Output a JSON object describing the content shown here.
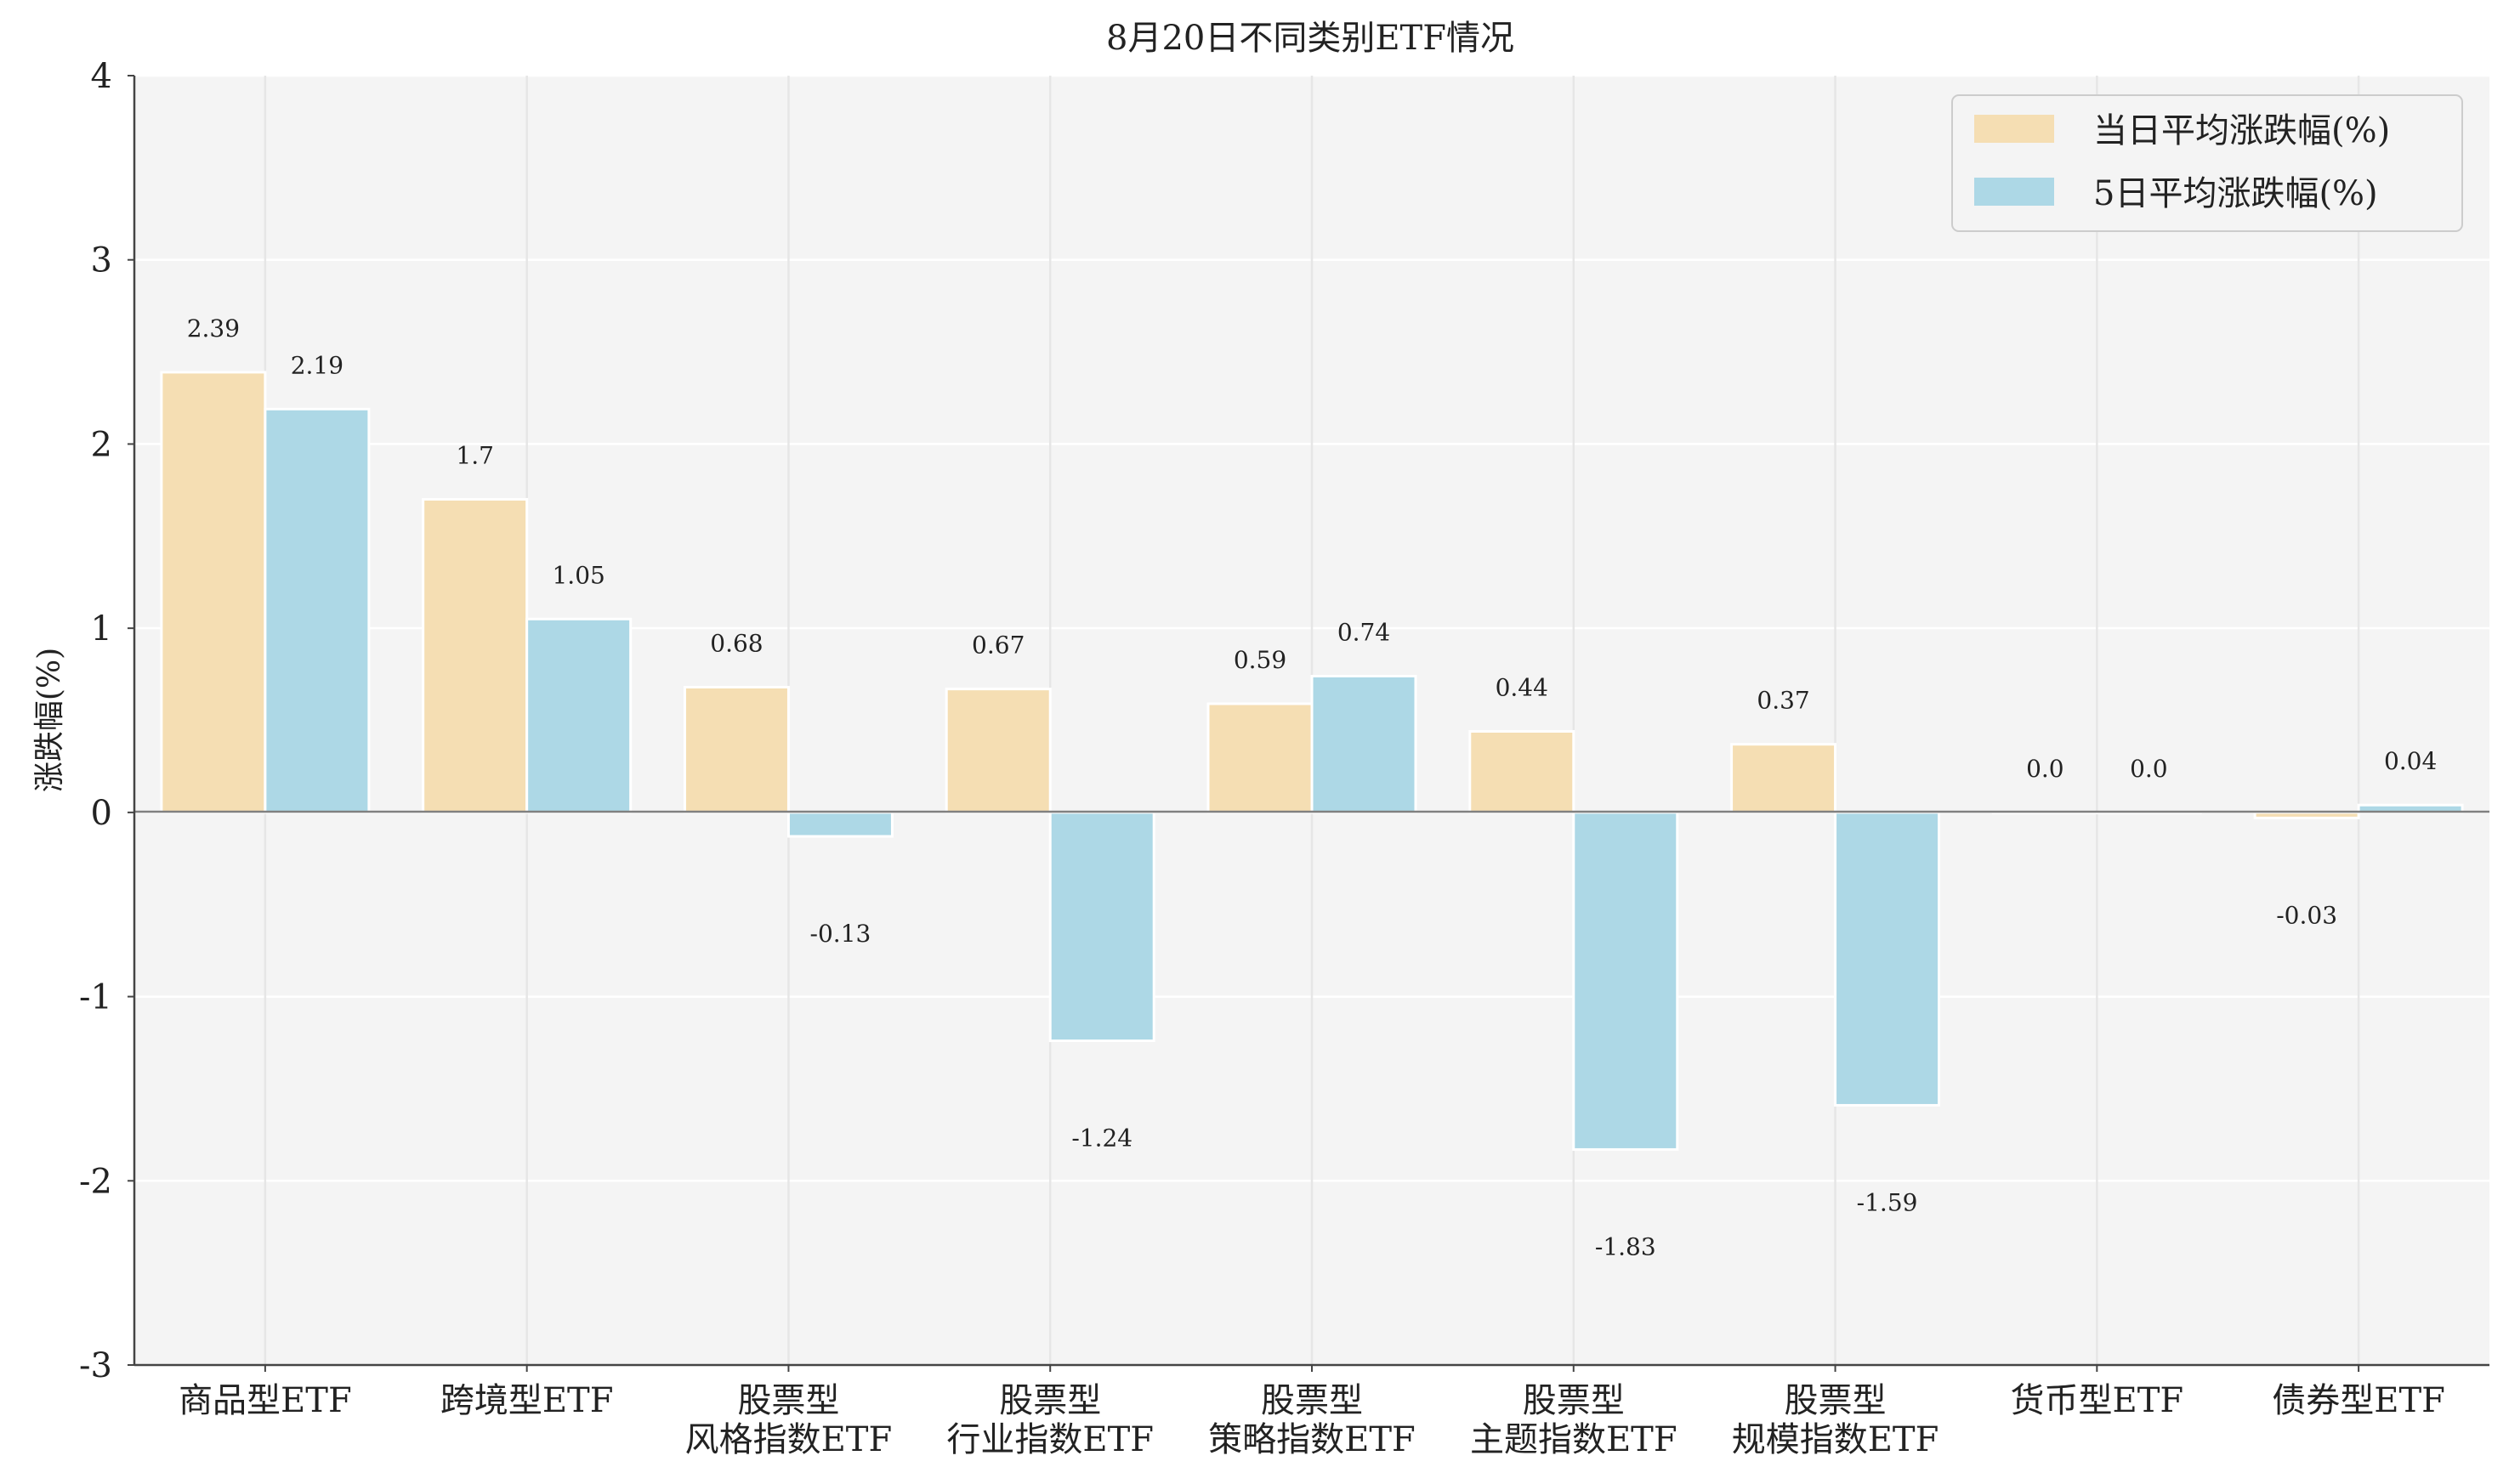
{
  "chart_data": {
    "type": "bar",
    "title": "8月20日不同类别ETF情况",
    "xlabel": "",
    "ylabel": "涨跌幅(%)",
    "ylim": [
      -3,
      4
    ],
    "yticks": [
      "4",
      "3",
      "2",
      "1",
      "0",
      "-1",
      "-2",
      "-3"
    ],
    "categories": [
      [
        "商品型ETF"
      ],
      [
        "跨境型ETF"
      ],
      [
        "股票型",
        "风格指数ETF"
      ],
      [
        "股票型",
        "行业指数ETF"
      ],
      [
        "股票型",
        "策略指数ETF"
      ],
      [
        "股票型",
        "主题指数ETF"
      ],
      [
        "股票型",
        "规模指数ETF"
      ],
      [
        "货币型ETF"
      ],
      [
        "债券型ETF"
      ]
    ],
    "series": [
      {
        "name": "当日平均涨跌幅(%)",
        "color": "#f5deb3",
        "values": [
          2.39,
          1.7,
          0.68,
          0.67,
          0.59,
          0.44,
          0.37,
          0.0,
          -0.03
        ],
        "labels": [
          "2.39",
          "1.7",
          "0.68",
          "0.67",
          "0.59",
          "0.44",
          "0.37",
          "0.0",
          "-0.03"
        ]
      },
      {
        "name": "5日平均涨跌幅(%)",
        "color": "#add8e6",
        "values": [
          2.19,
          1.05,
          -0.13,
          -1.24,
          0.74,
          -1.83,
          -1.59,
          0.0,
          0.04
        ],
        "labels": [
          "2.19",
          "1.05",
          "-0.13",
          "-1.24",
          "0.74",
          "-1.83",
          "-1.59",
          "0.0",
          "0.04"
        ]
      }
    ],
    "grid": true,
    "legend": "top-right",
    "background_color": "#f4f4f4",
    "zero_line_color": "#808080"
  }
}
